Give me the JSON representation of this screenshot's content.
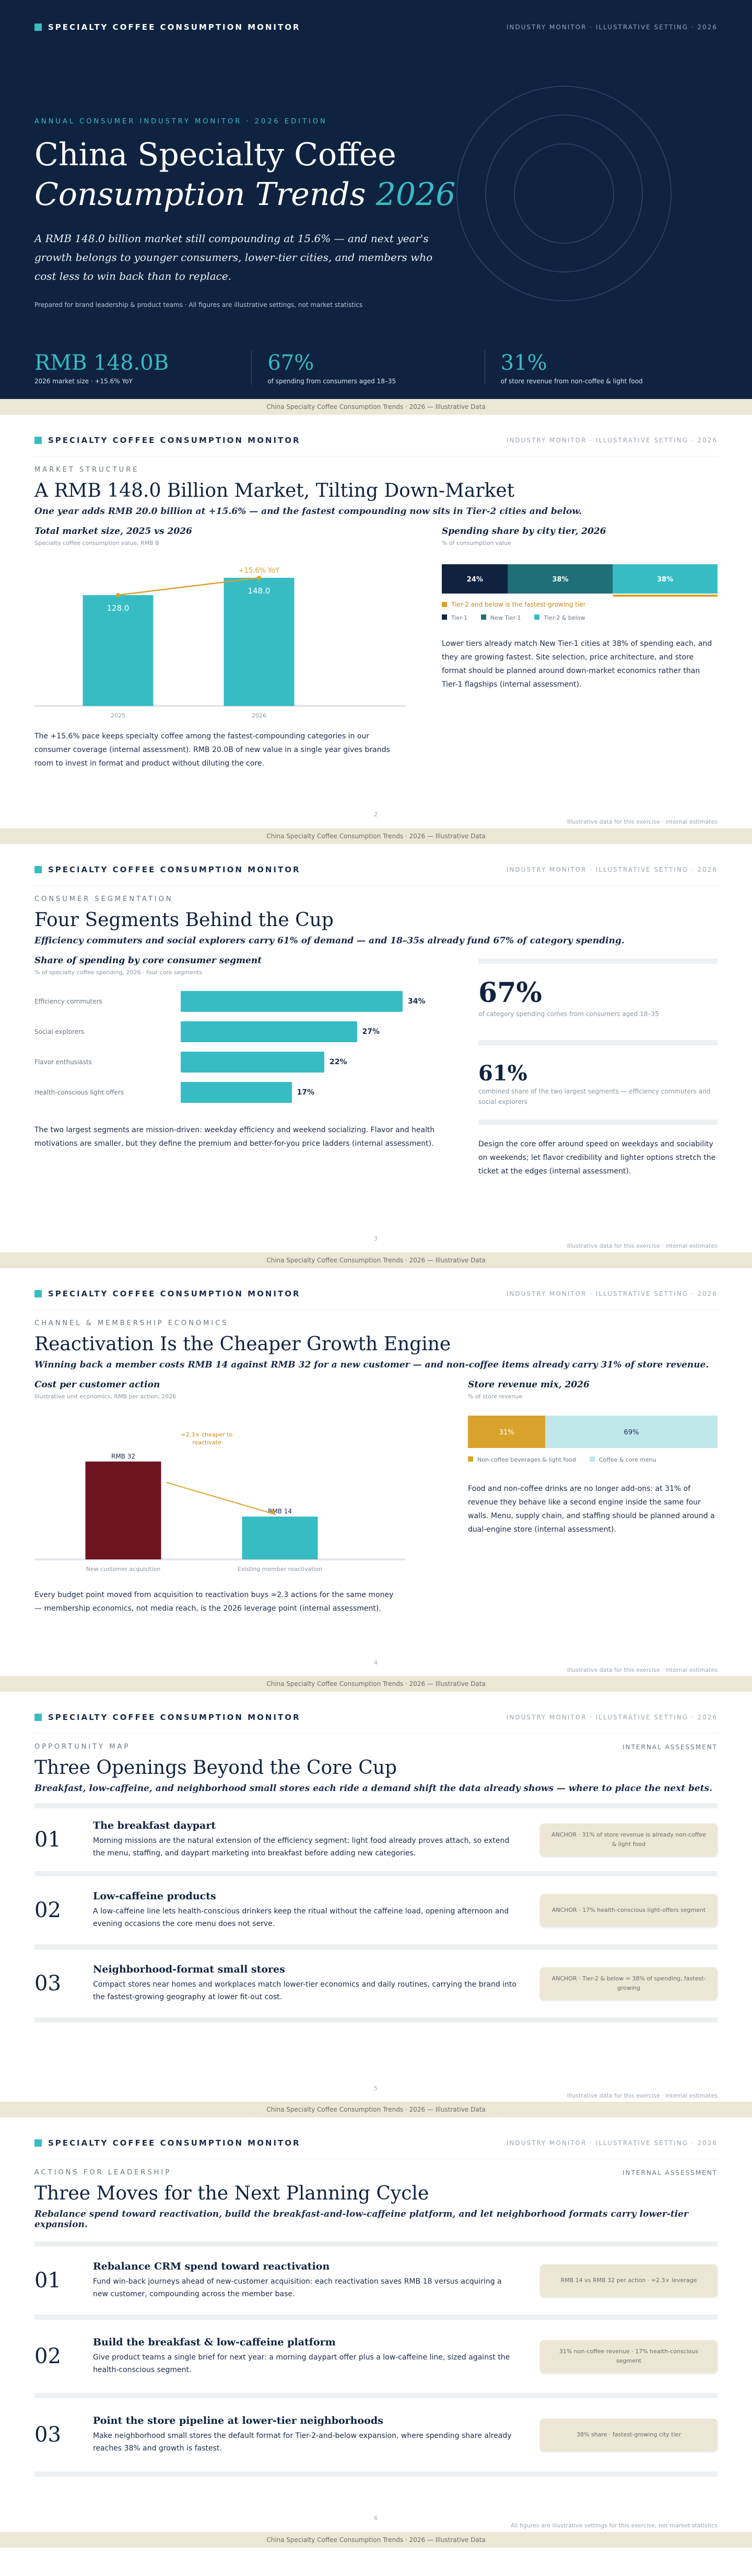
{
  "header": {
    "brand": "Specialty Coffee Consumption Monitor",
    "right": "Industry Monitor · Illustrative Setting · 2026"
  },
  "footer": {
    "text": "China Specialty Coffee Consumption Trends · 2026 — Illustrative Data"
  },
  "cover": {
    "eyebrow": "Annual Consumer Industry Monitor · 2026 Edition",
    "title_line1": "China Specialty Coffee",
    "title_line2_italic": "Consumption Trends",
    "title_year": "2026",
    "subtitle": "A RMB 148.0 billion market still compounding at 15.6% — and next year's growth belongs to younger consumers, lower-tier cities, and members who cost less to win back than to replace.",
    "note": "Prepared for brand leadership & product teams · All figures are illustrative settings, not market statistics",
    "stats": [
      {
        "value": "RMB 148.0B",
        "label": "2026 market size · +15.6% YoY"
      },
      {
        "value": "67%",
        "label": "of spending from consumers aged 18–35"
      },
      {
        "value": "31%",
        "label": "of store revenue from non-coffee & light food"
      }
    ]
  },
  "market": {
    "kicker": "Market Structure",
    "title": "A RMB 148.0 Billion Market, Tilting Down-Market",
    "subtitle": "One year adds RMB 20.0 billion at +15.6% — and the fastest compounding now sits in Tier-2 cities and below.",
    "left_title": "Total market size, 2025 vs 2026",
    "left_caption": "Specialty coffee consumption value, RMB B",
    "growth_label": "+15.6% YoY",
    "right_title": "Spending share by city tier, 2026",
    "right_caption": "% of consumption value",
    "tier_note": "Tier-2 and below is the fastest-growing tier",
    "legend": [
      "Tier-1",
      "New Tier-1",
      "Tier-2 & below"
    ],
    "right_text": "Lower tiers already match New Tier-1 cities at 38% of spending each, and they are growing fastest. Site selection, price architecture, and store format should be planned around down-market economics rather than Tier-1 flagships (internal assessment).",
    "left_text": "The +15.6% pace keeps specialty coffee among the fastest-compounding categories in our consumer coverage (internal assessment). RMB 20.0B of new value in a single year gives brands room to invest in format and product without diluting the core.",
    "page_no": "2",
    "source": "Illustrative data for this exercise · internal estimates"
  },
  "segments": {
    "kicker": "Consumer Segmentation",
    "title": "Four Segments Behind the Cup",
    "subtitle": "Efficiency commuters and social explorers carry 61% of demand — and 18–35s already fund 67% of category spending.",
    "chart_title": "Share of spending by core consumer segment",
    "chart_caption": "% of specialty coffee spending, 2026 · four core segments",
    "stat1_value": "67%",
    "stat1_label": "of category spending comes from consumers aged 18–35",
    "stat2_value": "61%",
    "stat2_label": "combined share of the two largest segments — efficiency commuters and social explorers",
    "side_text": "Design the core offer around speed on weekdays and sociability on weekends; let flavor credibility and lighter options stretch the ticket at the edges (internal assessment).",
    "body_text": "The two largest segments are mission-driven: weekday efficiency and weekend socializing. Flavor and health motivations are smaller, but they define the premium and better-for-you price ladders (internal assessment).",
    "page_no": "3",
    "source": "Illustrative data for this exercise · internal estimates"
  },
  "channel": {
    "kicker": "Channel & Membership Economics",
    "title": "Reactivation Is the Cheaper Growth Engine",
    "subtitle": "Winning back a member costs RMB 14 against RMB 32 for a new customer — and non-coffee items already carry 31% of store revenue.",
    "left_title": "Cost per customer action",
    "left_caption": "Illustrative unit economics, RMB per action, 2026",
    "cheaper_label": "≈2.3× cheaper to reactivate",
    "right_title": "Store revenue mix, 2026",
    "right_caption": "% of store revenue",
    "legend": [
      "Non-coffee beverages & light food",
      "Coffee & core menu"
    ],
    "right_text": "Food and non-coffee drinks are no longer add-ons: at 31% of revenue they behave like a second engine inside the same four walls. Menu, supply chain, and staffing should be planned around a dual-engine store (internal assessment).",
    "left_text": "Every budget point moved from acquisition to reactivation buys ≈2.3 actions for the same money — membership economics, not media reach, is the 2026 leverage point (internal assessment).",
    "page_no": "4",
    "source": "Illustrative data for this exercise · internal estimates"
  },
  "opportunities": {
    "kicker": "Opportunity Map",
    "kicker_right": "Internal Assessment",
    "title": "Three Openings Beyond the Core Cup",
    "subtitle": "Breakfast, low-caffeine, and neighborhood small stores each ride a demand shift the data already shows — where to place the next bets.",
    "items": [
      {
        "num": "01",
        "title": "The breakfast daypart",
        "desc": "Morning missions are the natural extension of the efficiency segment: light food already proves attach, so extend the menu, staffing, and daypart marketing into breakfast before adding new categories.",
        "chip": "ANCHOR · 31% of store revenue is already non-coffee & light food"
      },
      {
        "num": "02",
        "title": "Low-caffeine products",
        "desc": "A low-caffeine line lets health-conscious drinkers keep the ritual without the caffeine load, opening afternoon and evening occasions the core menu does not serve.",
        "chip": "ANCHOR · 17% health-conscious light-offers segment"
      },
      {
        "num": "03",
        "title": "Neighborhood-format small stores",
        "desc": "Compact stores near homes and workplaces match lower-tier economics and daily routines, carrying the brand into the fastest-growing geography at lower fit-out cost.",
        "chip": "ANCHOR · Tier-2 & below = 38% of spending, fastest-growing"
      }
    ],
    "page_no": "5",
    "source": "Illustrative data for this exercise · internal estimates"
  },
  "actions": {
    "kicker": "Actions for Leadership",
    "kicker_right": "Internal Assessment",
    "title": "Three Moves for the Next Planning Cycle",
    "subtitle": "Rebalance spend toward reactivation, build the breakfast-and-low-caffeine platform, and let neighborhood formats carry lower-tier expansion.",
    "items": [
      {
        "num": "01",
        "title": "Rebalance CRM spend toward reactivation",
        "desc": "Fund win-back journeys ahead of new-customer acquisition: each reactivation saves RMB 18 versus acquiring a new customer, compounding across the member base.",
        "chip": "RMB 14 vs RMB 32 per action · ≈2.3× leverage"
      },
      {
        "num": "02",
        "title": "Build the breakfast & low-caffeine platform",
        "desc": "Give product teams a single brief for next year: a morning daypart offer plus a low-caffeine line, sized against the health-conscious segment.",
        "chip": "31% non-coffee revenue · 17% health-conscious segment"
      },
      {
        "num": "03",
        "title": "Point the store pipeline at lower-tier neighborhoods",
        "desc": "Make neighborhood small stores the default format for Tier-2-and-below expansion, where spending share already reaches 38% and growth is fastest.",
        "chip": "38% share · fastest-growing city tier"
      }
    ],
    "page_no": "6",
    "source": "All figures are illustrative settings for this exercise, not market statistics"
  },
  "colors": {
    "navy": "#0f2340",
    "teal": "#38bcc4",
    "dark_teal": "#1f6f78",
    "maroon": "#6e1420",
    "gold": "#d9a22c",
    "cream": "#ece6d4"
  },
  "chart_data": [
    {
      "type": "bar",
      "title": "Total market size, 2025 vs 2026",
      "ylabel": "Specialty coffee consumption value, RMB B",
      "categories": [
        "2025",
        "2026"
      ],
      "values": [
        128.0,
        148.0
      ],
      "annotation": "+15.6% YoY",
      "ylim": [
        0,
        160
      ]
    },
    {
      "type": "bar",
      "title": "Spending share by city tier, 2026",
      "ylabel": "% of consumption value",
      "stacked": true,
      "categories": [
        "Tier-1",
        "New Tier-1",
        "Tier-2 & below"
      ],
      "values": [
        24,
        38,
        38
      ]
    },
    {
      "type": "bar",
      "title": "Share of spending by core consumer segment",
      "orientation": "horizontal",
      "categories": [
        "Efficiency commuters",
        "Social explorers",
        "Flavor enthusiasts",
        "Health-conscious light offers"
      ],
      "values": [
        34,
        27,
        22,
        17
      ],
      "xlim": [
        0,
        40
      ]
    },
    {
      "type": "bar",
      "title": "Cost per customer action",
      "ylabel": "RMB per action, 2026",
      "categories": [
        "New customer acquisition",
        "Existing member reactivation"
      ],
      "values": [
        32,
        14
      ],
      "value_labels": [
        "RMB 32",
        "RMB 14"
      ],
      "annotation": "≈2.3× cheaper to reactivate",
      "ylim": [
        0,
        40
      ]
    },
    {
      "type": "bar",
      "title": "Store revenue mix, 2026",
      "ylabel": "% of store revenue",
      "stacked": true,
      "categories": [
        "Non-coffee beverages & light food",
        "Coffee & core menu"
      ],
      "values": [
        31,
        69
      ]
    }
  ]
}
